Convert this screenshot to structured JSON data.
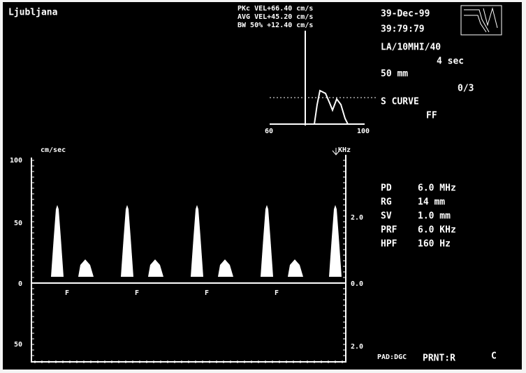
{
  "header": {
    "location": "Ljubljana",
    "measurements": [
      "PKc VEL+66.40 cm/s",
      "AVG VEL+45.20 cm/s",
      "BW 50% +12.40 cm/s"
    ],
    "date": "39-Dec-99",
    "time": "39:79:79"
  },
  "settings": {
    "probe": "LA/10MHI/40",
    "sweep": "4 sec",
    "depth": "50 mm",
    "frame": "0/3",
    "curve": "S CURVE",
    "mode": "FF"
  },
  "spectrum": {
    "axis": [
      "60",
      "100"
    ]
  },
  "doppler": {
    "left_unit": "cm/sec",
    "right_unit": "KHz",
    "left_axis": [
      "100",
      "50",
      "0",
      "50"
    ],
    "right_axis": [
      "2.0",
      "0.0",
      "2.0"
    ],
    "markers": [
      "F",
      "F",
      "F",
      "F"
    ]
  },
  "parameters": [
    [
      "PD",
      "6.0 MHz"
    ],
    [
      "RG",
      "14 mm"
    ],
    [
      "SV",
      "1.0 mm"
    ],
    [
      "PRF",
      "6.0 KHz"
    ],
    [
      "HPF",
      "160 Hz"
    ]
  ],
  "footer": {
    "pad": "PAD:DGC",
    "print": "PRNT:R",
    "code": "C"
  }
}
